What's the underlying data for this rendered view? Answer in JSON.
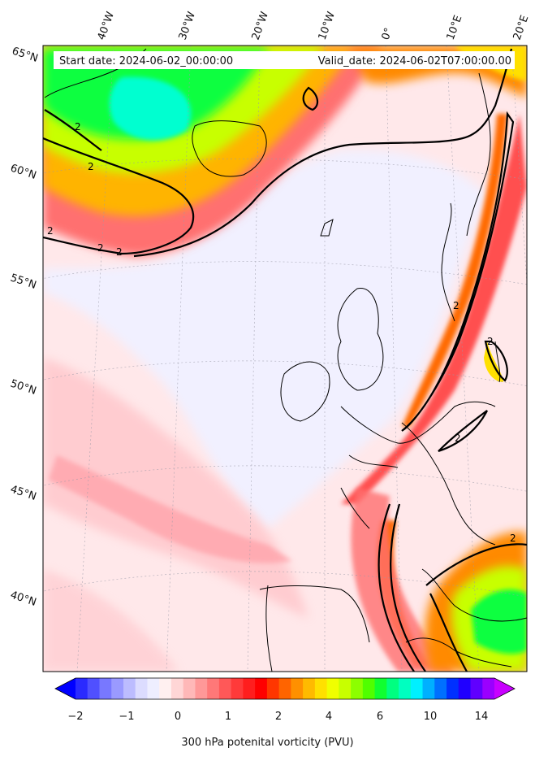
{
  "header": {
    "start_date": "Start date: 2024-06-02_00:00:00",
    "valid_date": "Valid_date: 2024-06-02T07:00:00.00"
  },
  "lon_labels": [
    "40°W",
    "30°W",
    "20°W",
    "10°W",
    "0°",
    "10°E",
    "20°E"
  ],
  "lat_labels": [
    "65°N",
    "60°N",
    "55°N",
    "50°N",
    "45°N",
    "40°N"
  ],
  "contour_labels": [
    "2",
    "2",
    "2",
    "2",
    "2",
    "2",
    "2",
    "2",
    "2"
  ],
  "colorbar": {
    "tick_labels": [
      "−2",
      "−1",
      "0",
      "1",
      "2",
      "4",
      "6",
      "10",
      "14"
    ],
    "title": "300 hPa potenital vorticity (PVU)",
    "colors": [
      "#0000ff",
      "#2a2aff",
      "#5050ff",
      "#7878ff",
      "#9a9aff",
      "#bcbcff",
      "#dcdcff",
      "#eeeeff",
      "#fff0f0",
      "#ffd6d6",
      "#ffb8b8",
      "#ff9898",
      "#ff7878",
      "#ff5858",
      "#ff3a3a",
      "#ff1e1e",
      "#ff0000",
      "#ff3600",
      "#ff6400",
      "#ff9000",
      "#ffba00",
      "#ffe000",
      "#f0ff00",
      "#c8ff00",
      "#8cff00",
      "#50ff00",
      "#10ff30",
      "#00ff80",
      "#00ffc0",
      "#00f0ff",
      "#00b0ff",
      "#0070ff",
      "#0030ff",
      "#2000ff",
      "#6000ff",
      "#9a00ff",
      "#c800ff"
    ]
  }
}
